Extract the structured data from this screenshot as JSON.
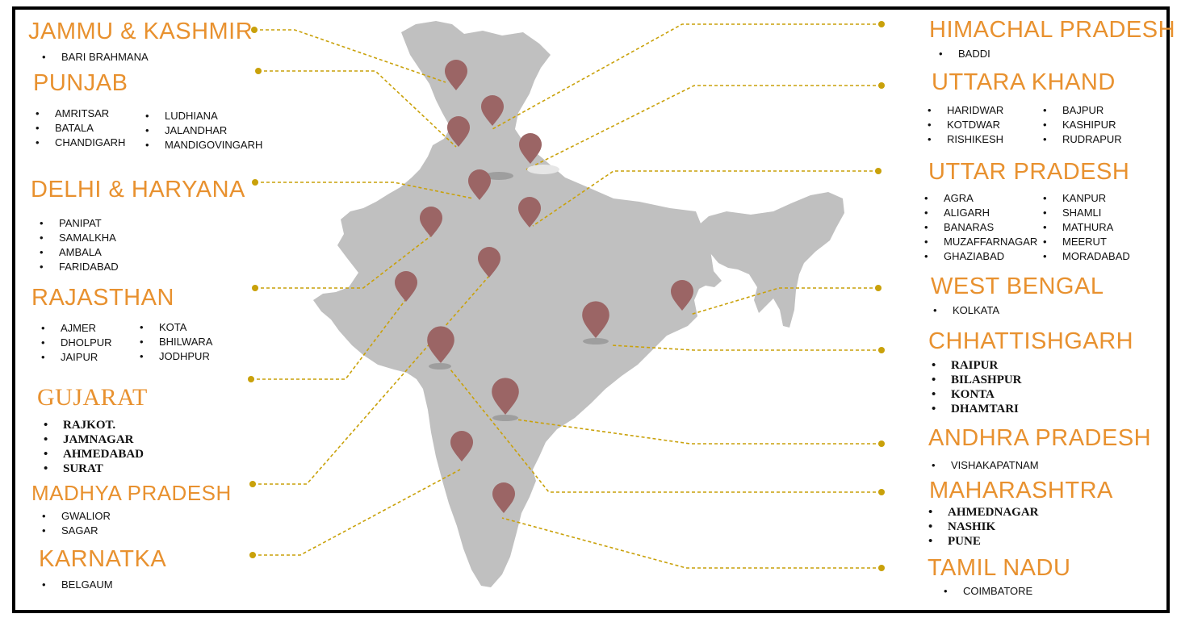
{
  "colors": {
    "title": "#E8912F",
    "land": "#C0C0C0",
    "pin": "#9B6565",
    "connector": "#C9A10A",
    "frame": "#000000"
  },
  "icons": {
    "pin": "map-pin-icon",
    "dot": "connector-dot-icon"
  },
  "regions": {
    "jammu_kashmir": {
      "title": "JAMMU & KASHMIR",
      "cities": [
        "BARI BRAHMANA"
      ]
    },
    "punjab": {
      "title": "PUNJAB",
      "cities_col1": [
        "AMRITSAR",
        "BATALA",
        "CHANDIGARH"
      ],
      "cities_col2": [
        "LUDHIANA",
        "JALANDHAR",
        "MANDIGOVINGARH"
      ]
    },
    "delhi_haryana": {
      "title": "DELHI & HARYANA",
      "cities": [
        "PANIPAT",
        "SAMALKHA",
        "AMBALA",
        "FARIDABAD"
      ]
    },
    "rajasthan": {
      "title": "RAJASTHAN",
      "cities_col1": [
        "AJMER",
        "DHOLPUR",
        "JAIPUR"
      ],
      "cities_col2": [
        "KOTA",
        "BHILWARA",
        "JODHPUR"
      ]
    },
    "gujarat": {
      "title": "GUJARAT",
      "cities": [
        "RAJKOT.",
        "JAMNAGAR",
        "AHMEDABAD",
        "SURAT"
      ]
    },
    "madhya_pradesh": {
      "title": "MADHYA PRADESH",
      "cities": [
        "GWALIOR",
        "SAGAR"
      ]
    },
    "karnatka": {
      "title": "KARNATKA",
      "cities": [
        "BELGAUM"
      ]
    },
    "himachal_pradesh": {
      "title": "HIMACHAL PRADESH",
      "cities": [
        "BADDI"
      ]
    },
    "uttara_khand": {
      "title": "UTTARA KHAND",
      "cities_col1": [
        "HARIDWAR",
        "KOTDWAR",
        "RISHIKESH"
      ],
      "cities_col2": [
        "BAJPUR",
        "KASHIPUR",
        "RUDRAPUR"
      ]
    },
    "uttar_pradesh": {
      "title": "UTTAR PRADESH",
      "cities_col1": [
        "AGRA",
        "ALIGARH",
        "BANARAS",
        "MUZAFFARNAGAR",
        "GHAZIABAD"
      ],
      "cities_col2": [
        "KANPUR",
        "SHAMLI",
        "MATHURA",
        "MEERUT",
        "MORADABAD"
      ]
    },
    "west_bengal": {
      "title": "WEST BENGAL",
      "cities": [
        "KOLKATA"
      ]
    },
    "chhattishgarh": {
      "title": "CHHATTISHGARH",
      "cities": [
        "RAIPUR",
        "BILASHPUR",
        "KONTA",
        "DHAMTARI"
      ]
    },
    "andhra_pradesh": {
      "title": "ANDHRA PRADESH",
      "cities": [
        "VISHAKAPATNAM"
      ]
    },
    "maharashtra": {
      "title": "MAHARASHTRA",
      "cities": [
        "AHMEDNAGAR",
        "NASHIK",
        "PUNE"
      ]
    },
    "tamil_nadu": {
      "title": "TAMIL NADU",
      "cities": [
        "COIMBATORE"
      ]
    }
  }
}
